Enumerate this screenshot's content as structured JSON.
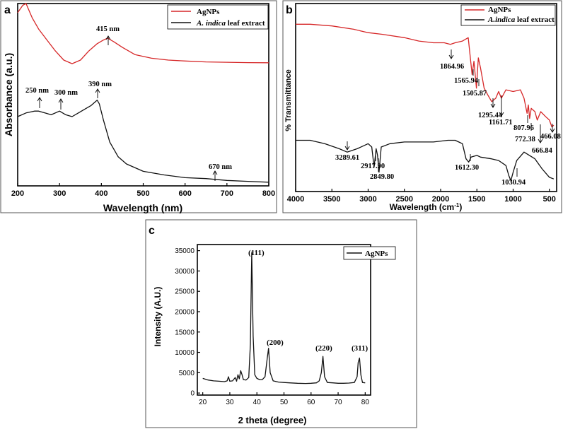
{
  "colors": {
    "agnps": "#d62728",
    "extract": "#111111",
    "axis": "#000000"
  },
  "chart_data": [
    {
      "panel": "a",
      "type": "line",
      "xlabel": "Wavelength (nm)",
      "ylabel": "Absorbance (a.u.)",
      "xlim": [
        200,
        800
      ],
      "ylim": [
        0,
        1
      ],
      "xticks": [
        "200",
        "300",
        "400",
        "500",
        "600",
        "700",
        "800"
      ],
      "legend": {
        "placement": "top-right",
        "entries": [
          "AgNPs",
          "A. indica leaf extract"
        ],
        "italic_part": "A. indica",
        "plain_part": " leaf extract"
      },
      "series": [
        {
          "name": "AgNPs",
          "color": "#d62728",
          "x": [
            200,
            212,
            220,
            235,
            250,
            270,
            290,
            310,
            330,
            350,
            370,
            390,
            405,
            415,
            430,
            450,
            480,
            520,
            560,
            600,
            650,
            700,
            750,
            800
          ],
          "y": [
            0.95,
            0.99,
            1.0,
            0.92,
            0.86,
            0.8,
            0.74,
            0.69,
            0.67,
            0.69,
            0.74,
            0.78,
            0.8,
            0.81,
            0.79,
            0.76,
            0.72,
            0.7,
            0.69,
            0.685,
            0.68,
            0.678,
            0.676,
            0.675
          ]
        },
        {
          "name": "A. indica leaf extract",
          "color": "#111111",
          "x": [
            200,
            220,
            240,
            250,
            265,
            280,
            300,
            315,
            330,
            345,
            360,
            375,
            385,
            390,
            395,
            405,
            420,
            440,
            460,
            500,
            550,
            600,
            650,
            700,
            750,
            800
          ],
          "y": [
            0.38,
            0.4,
            0.41,
            0.41,
            0.4,
            0.39,
            0.41,
            0.39,
            0.38,
            0.4,
            0.42,
            0.44,
            0.46,
            0.47,
            0.45,
            0.36,
            0.24,
            0.16,
            0.12,
            0.08,
            0.06,
            0.045,
            0.04,
            0.03,
            0.025,
            0.02
          ]
        }
      ],
      "annotations": [
        "415 nm",
        "250 nm",
        "300 nm",
        "390 nm",
        "670 nm"
      ]
    },
    {
      "panel": "b",
      "type": "line",
      "xlabel": "Wavelength (cm",
      "xlabel_sup": "-1",
      "xlabel_end": ")",
      "ylabel": "% Transmittance",
      "xlim": [
        4000,
        400
      ],
      "ylim": [
        0,
        1
      ],
      "xticks": [
        "4000",
        "3500",
        "3000",
        "2500",
        "2000",
        "1500",
        "1000",
        "500"
      ],
      "legend": {
        "placement": "top-right",
        "entries": [
          "AgNPs",
          "A.indica leaf extract"
        ],
        "italic_part": "A.indica",
        "plain_part": " leaf extract"
      },
      "series": [
        {
          "name": "AgNPs",
          "color": "#d62728",
          "x": [
            4000,
            3800,
            3500,
            3200,
            3000,
            2800,
            2500,
            2300,
            2100,
            1950,
            1864.96,
            1800,
            1700,
            1620,
            1580,
            1565.94,
            1540,
            1505.87,
            1480,
            1450,
            1400,
            1350,
            1295.44,
            1240,
            1200,
            1161.71,
            1100,
            1000,
            900,
            850,
            807.96,
            790,
            772.38,
            750,
            700,
            666.84,
            620,
            550,
            500,
            466.08,
            440
          ],
          "y": [
            0.94,
            0.94,
            0.93,
            0.91,
            0.89,
            0.88,
            0.86,
            0.84,
            0.83,
            0.83,
            0.82,
            0.83,
            0.84,
            0.86,
            0.7,
            0.64,
            0.72,
            0.56,
            0.74,
            0.68,
            0.56,
            0.52,
            0.48,
            0.5,
            0.54,
            0.5,
            0.55,
            0.54,
            0.55,
            0.5,
            0.41,
            0.46,
            0.38,
            0.44,
            0.42,
            0.37,
            0.42,
            0.39,
            0.37,
            0.33,
            0.34
          ]
        },
        {
          "name": "A.indica leaf extract",
          "color": "#111111",
          "x": [
            4000,
            3800,
            3600,
            3400,
            3289.61,
            3150,
            3000,
            2950,
            2917.9,
            2890,
            2870,
            2849.8,
            2820,
            2700,
            2500,
            2300,
            2100,
            1900,
            1800,
            1750,
            1700,
            1650,
            1612.3,
            1580,
            1500,
            1450,
            1300,
            1200,
            1100,
            1060,
            1030.94,
            1000,
            950,
            850,
            700,
            600,
            500,
            440
          ],
          "y": [
            0.25,
            0.25,
            0.23,
            0.2,
            0.18,
            0.2,
            0.23,
            0.21,
            0.09,
            0.2,
            0.16,
            0.06,
            0.21,
            0.23,
            0.24,
            0.24,
            0.24,
            0.25,
            0.25,
            0.24,
            0.23,
            0.14,
            0.12,
            0.15,
            0.16,
            0.15,
            0.14,
            0.13,
            0.1,
            0.04,
            0.01,
            0.06,
            0.13,
            0.18,
            0.14,
            0.08,
            0.03,
            0.02
          ]
        }
      ],
      "annotations": [
        "1864.96",
        "1565.94",
        "1505.87",
        "1295.44",
        "1161.71",
        "807.96",
        "772.38",
        "666.84",
        "466.08",
        "3289.61",
        "2917.90",
        "2849.80",
        "1612.30",
        "1030.94"
      ]
    },
    {
      "panel": "c",
      "type": "line",
      "xlabel": "2 theta (degree)",
      "ylabel": "Intensity (A.U.)",
      "xlim": [
        18,
        82
      ],
      "ylim": [
        -500,
        36500
      ],
      "xticks": [
        "20",
        "30",
        "40",
        "50",
        "60",
        "70",
        "80"
      ],
      "yticks": [
        "0",
        "5000",
        "10000",
        "15000",
        "20000",
        "25000",
        "30000",
        "35000"
      ],
      "legend": {
        "placement": "top-right",
        "entries": [
          "AgNPs"
        ]
      },
      "series": [
        {
          "name": "AgNPs",
          "color": "#111111",
          "x": [
            20,
            22,
            24,
            26,
            28,
            29,
            29.5,
            30,
            31,
            32,
            32.5,
            33,
            33.5,
            34,
            34.5,
            35,
            36,
            37,
            37.6,
            38.1,
            38.6,
            39.2,
            40,
            41,
            42,
            43,
            43.8,
            44.3,
            44.9,
            46,
            48,
            50,
            52,
            55,
            58,
            60,
            62,
            63,
            63.8,
            64.4,
            65,
            66,
            68,
            70,
            72,
            74,
            76,
            77,
            77.4,
            77.9,
            78.4,
            79,
            80
          ],
          "y": [
            3600,
            3200,
            3000,
            2900,
            2800,
            3000,
            4000,
            2900,
            3000,
            3800,
            2900,
            4500,
            3500,
            5500,
            4500,
            3300,
            3200,
            3800,
            12000,
            34500,
            14000,
            4500,
            3600,
            3300,
            3300,
            4000,
            8500,
            11000,
            5000,
            3000,
            2700,
            2600,
            2500,
            2400,
            2350,
            2400,
            2500,
            3000,
            5000,
            9000,
            4000,
            2600,
            2500,
            2400,
            2400,
            2450,
            2600,
            4000,
            7500,
            8600,
            4500,
            2600,
            2500
          ]
        }
      ],
      "annotations": [
        "(111)",
        "(200)",
        "(220)",
        "(311)"
      ]
    }
  ]
}
